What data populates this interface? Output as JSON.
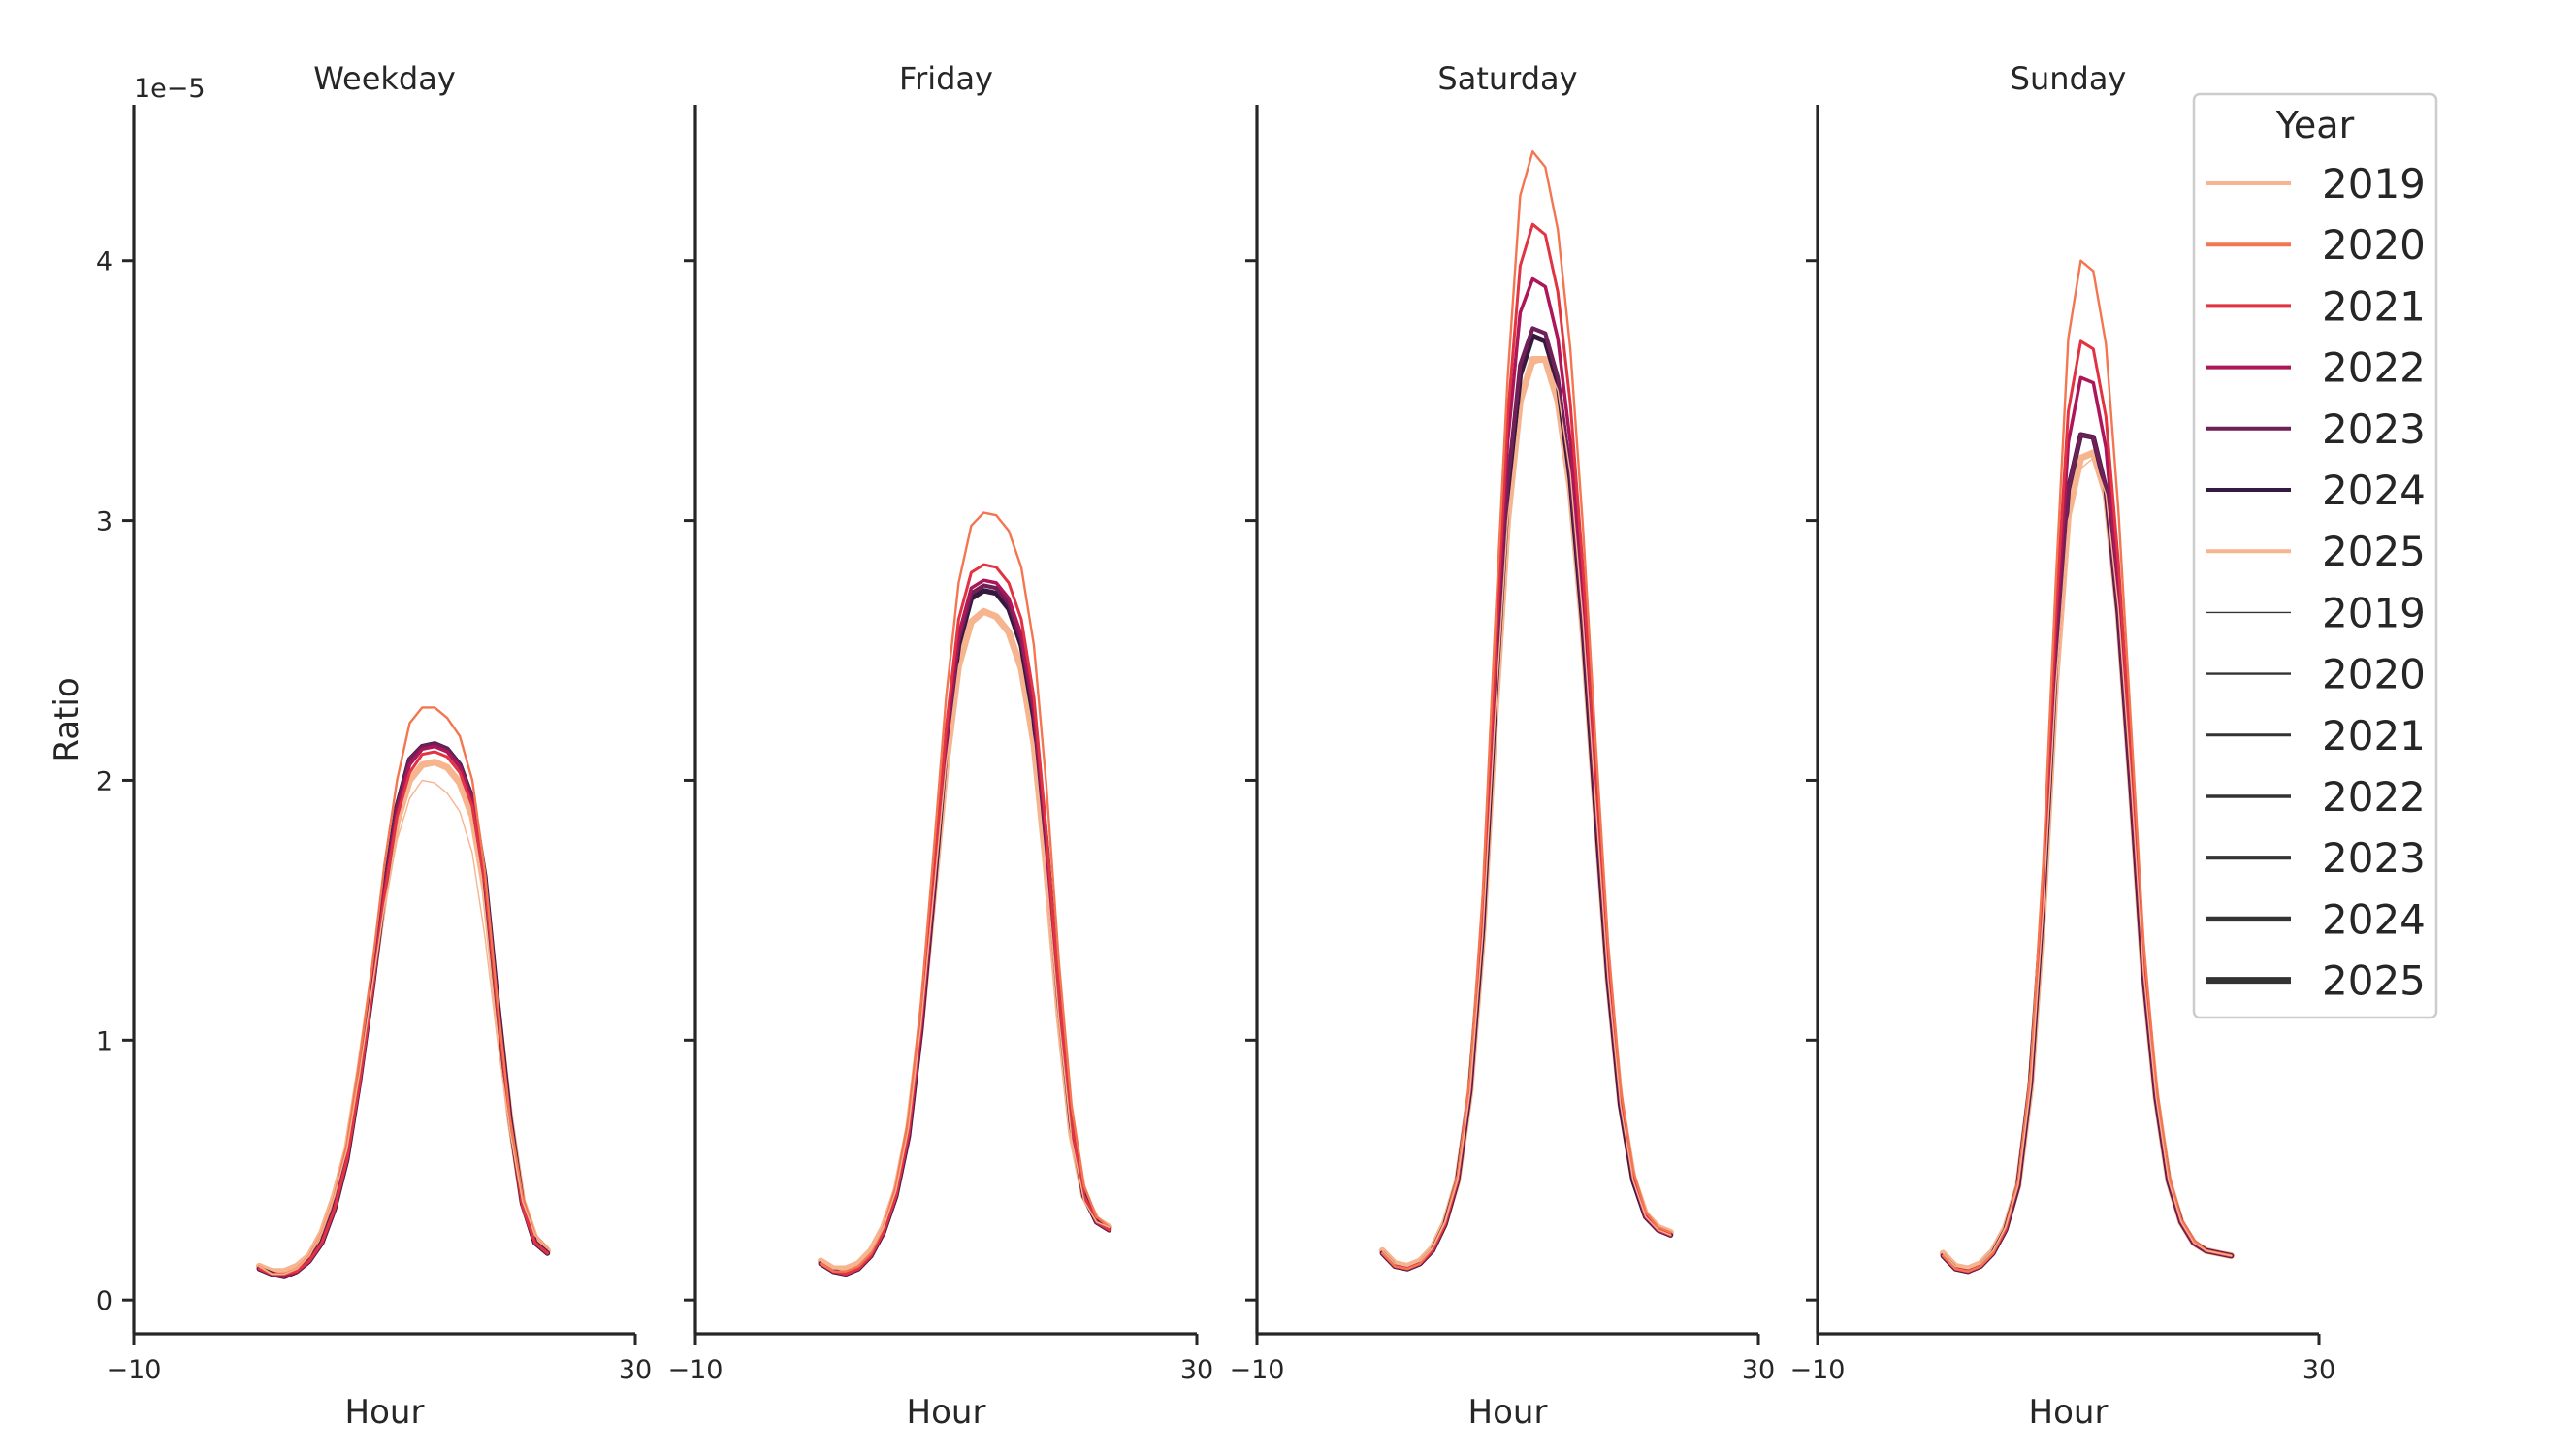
{
  "chart_data": {
    "type": "line",
    "panels": [
      "Weekday",
      "Friday",
      "Saturday",
      "Sunday"
    ],
    "xlabel": "Hour",
    "ylabel": "Ratio",
    "y_offset_label": "1e−5",
    "xlim": [
      -10,
      30
    ],
    "ylim": [
      -0.13,
      4.6
    ],
    "x_ticks": [
      -10,
      30
    ],
    "x_tick_labels": [
      "−10",
      "30"
    ],
    "y_ticks": [
      0,
      1,
      2,
      3,
      4
    ],
    "y_tick_labels": [
      "0",
      "1",
      "2",
      "3",
      "4"
    ],
    "y_unit_scale": 1e-05,
    "grid": false,
    "legend": {
      "title": "Year",
      "placement": "upper-right",
      "hue_entries": [
        {
          "label": "2019",
          "color": "#f6b48f"
        },
        {
          "label": "2020",
          "color": "#f37651"
        },
        {
          "label": "2021",
          "color": "#e13342"
        },
        {
          "label": "2022",
          "color": "#ad1759"
        },
        {
          "label": "2023",
          "color": "#701f57"
        },
        {
          "label": "2024",
          "color": "#35193e"
        },
        {
          "label": "2025",
          "color": "#f6b48f"
        }
      ],
      "size_entries": [
        {
          "label": "2019",
          "color": "#333333"
        },
        {
          "label": "2020",
          "color": "#333333"
        },
        {
          "label": "2021",
          "color": "#333333"
        },
        {
          "label": "2022",
          "color": "#333333"
        },
        {
          "label": "2023",
          "color": "#333333"
        },
        {
          "label": "2024",
          "color": "#333333"
        },
        {
          "label": "2025",
          "color": "#333333"
        }
      ]
    },
    "x": [
      0,
      1,
      2,
      3,
      4,
      5,
      6,
      7,
      8,
      9,
      10,
      11,
      12,
      13,
      14,
      15,
      16,
      17,
      18,
      19,
      20,
      21,
      22,
      23
    ],
    "series": [
      {
        "panel": "Weekday",
        "name": "2019",
        "color": "#f6b48f",
        "width": 1.4,
        "values": [
          0.13,
          0.1,
          0.1,
          0.12,
          0.17,
          0.26,
          0.4,
          0.58,
          0.87,
          1.2,
          1.52,
          1.77,
          1.93,
          2.0,
          1.99,
          1.95,
          1.88,
          1.72,
          1.4,
          1.0,
          0.65,
          0.38,
          0.25,
          0.2
        ]
      },
      {
        "panel": "Weekday",
        "name": "2020",
        "color": "#f37651",
        "width": 2.4,
        "values": [
          0.13,
          0.1,
          0.1,
          0.12,
          0.17,
          0.26,
          0.4,
          0.6,
          0.92,
          1.28,
          1.68,
          2.0,
          2.22,
          2.28,
          2.28,
          2.24,
          2.17,
          2.0,
          1.65,
          1.15,
          0.7,
          0.4,
          0.25,
          0.2
        ]
      },
      {
        "panel": "Weekday",
        "name": "2021",
        "color": "#e13342",
        "width": 3.0,
        "values": [
          0.12,
          0.1,
          0.1,
          0.11,
          0.15,
          0.22,
          0.35,
          0.54,
          0.83,
          1.18,
          1.56,
          1.86,
          2.03,
          2.1,
          2.11,
          2.09,
          2.03,
          1.9,
          1.6,
          1.12,
          0.68,
          0.36,
          0.22,
          0.18
        ]
      },
      {
        "panel": "Weekday",
        "name": "2022",
        "color": "#ad1759",
        "width": 3.5,
        "values": [
          0.12,
          0.1,
          0.09,
          0.11,
          0.15,
          0.22,
          0.35,
          0.54,
          0.83,
          1.18,
          1.57,
          1.88,
          2.06,
          2.12,
          2.13,
          2.11,
          2.05,
          1.92,
          1.62,
          1.14,
          0.69,
          0.36,
          0.22,
          0.18
        ]
      },
      {
        "panel": "Weekday",
        "name": "2023",
        "color": "#701f57",
        "width": 4.2,
        "values": [
          0.12,
          0.1,
          0.09,
          0.11,
          0.15,
          0.22,
          0.35,
          0.54,
          0.84,
          1.19,
          1.58,
          1.9,
          2.08,
          2.13,
          2.14,
          2.12,
          2.06,
          1.93,
          1.63,
          1.15,
          0.7,
          0.37,
          0.22,
          0.18
        ]
      },
      {
        "panel": "Weekday",
        "name": "2024",
        "color": "#35193e",
        "width": 5.4,
        "values": [
          0.12,
          0.1,
          0.09,
          0.11,
          0.15,
          0.22,
          0.35,
          0.54,
          0.84,
          1.19,
          1.58,
          1.9,
          2.08,
          2.13,
          2.14,
          2.12,
          2.06,
          1.93,
          1.63,
          1.15,
          0.7,
          0.37,
          0.22,
          0.18
        ]
      },
      {
        "panel": "Weekday",
        "name": "2025",
        "color": "#f6b48f",
        "width": 7.0,
        "values": [
          0.13,
          0.11,
          0.11,
          0.13,
          0.17,
          0.26,
          0.4,
          0.58,
          0.88,
          1.22,
          1.56,
          1.84,
          2.0,
          2.06,
          2.07,
          2.05,
          1.99,
          1.86,
          1.58,
          1.12,
          0.7,
          0.38,
          0.24,
          0.19
        ]
      },
      {
        "panel": "Friday",
        "name": "2019",
        "color": "#f6b48f",
        "width": 1.4,
        "values": [
          0.15,
          0.12,
          0.12,
          0.14,
          0.19,
          0.28,
          0.42,
          0.66,
          1.06,
          1.56,
          2.06,
          2.44,
          2.62,
          2.66,
          2.64,
          2.58,
          2.44,
          2.14,
          1.64,
          1.08,
          0.62,
          0.38,
          0.3,
          0.28
        ]
      },
      {
        "panel": "Friday",
        "name": "2020",
        "color": "#f37651",
        "width": 2.4,
        "values": [
          0.14,
          0.11,
          0.11,
          0.13,
          0.18,
          0.28,
          0.44,
          0.7,
          1.14,
          1.72,
          2.32,
          2.76,
          2.98,
          3.03,
          3.02,
          2.96,
          2.82,
          2.52,
          1.98,
          1.3,
          0.75,
          0.44,
          0.32,
          0.28
        ]
      },
      {
        "panel": "Friday",
        "name": "2021",
        "color": "#e13342",
        "width": 3.0,
        "values": [
          0.14,
          0.11,
          0.1,
          0.12,
          0.17,
          0.26,
          0.4,
          0.64,
          1.06,
          1.6,
          2.2,
          2.62,
          2.8,
          2.83,
          2.82,
          2.76,
          2.62,
          2.32,
          1.8,
          1.18,
          0.68,
          0.4,
          0.3,
          0.27
        ]
      },
      {
        "panel": "Friday",
        "name": "2022",
        "color": "#ad1759",
        "width": 3.5,
        "values": [
          0.14,
          0.11,
          0.1,
          0.12,
          0.17,
          0.26,
          0.4,
          0.63,
          1.04,
          1.58,
          2.16,
          2.56,
          2.74,
          2.77,
          2.76,
          2.7,
          2.56,
          2.28,
          1.77,
          1.16,
          0.67,
          0.4,
          0.3,
          0.27
        ]
      },
      {
        "panel": "Friday",
        "name": "2023",
        "color": "#701f57",
        "width": 4.2,
        "values": [
          0.14,
          0.11,
          0.1,
          0.12,
          0.17,
          0.26,
          0.4,
          0.63,
          1.04,
          1.57,
          2.14,
          2.54,
          2.72,
          2.75,
          2.74,
          2.68,
          2.54,
          2.26,
          1.76,
          1.16,
          0.67,
          0.4,
          0.3,
          0.27
        ]
      },
      {
        "panel": "Friday",
        "name": "2024",
        "color": "#35193e",
        "width": 5.4,
        "values": [
          0.14,
          0.11,
          0.1,
          0.12,
          0.17,
          0.26,
          0.4,
          0.63,
          1.04,
          1.57,
          2.13,
          2.52,
          2.7,
          2.73,
          2.72,
          2.66,
          2.52,
          2.24,
          1.75,
          1.15,
          0.67,
          0.4,
          0.3,
          0.27
        ]
      },
      {
        "panel": "Friday",
        "name": "2025",
        "color": "#f6b48f",
        "width": 7.0,
        "values": [
          0.15,
          0.12,
          0.12,
          0.14,
          0.19,
          0.28,
          0.42,
          0.66,
          1.06,
          1.56,
          2.06,
          2.44,
          2.61,
          2.65,
          2.63,
          2.57,
          2.43,
          2.14,
          1.66,
          1.1,
          0.64,
          0.4,
          0.31,
          0.28
        ]
      },
      {
        "panel": "Saturday",
        "name": "2019",
        "color": "#f6b48f",
        "width": 1.4,
        "values": [
          0.19,
          0.14,
          0.13,
          0.15,
          0.2,
          0.3,
          0.46,
          0.8,
          1.4,
          2.25,
          3.0,
          3.44,
          3.6,
          3.62,
          3.5,
          3.18,
          2.62,
          1.92,
          1.24,
          0.75,
          0.46,
          0.32,
          0.27,
          0.25
        ]
      },
      {
        "panel": "Saturday",
        "name": "2020",
        "color": "#f37651",
        "width": 2.4,
        "values": [
          0.18,
          0.13,
          0.12,
          0.14,
          0.2,
          0.3,
          0.48,
          0.86,
          1.56,
          2.6,
          3.55,
          4.25,
          4.42,
          4.36,
          4.12,
          3.66,
          2.98,
          2.16,
          1.38,
          0.82,
          0.5,
          0.34,
          0.28,
          0.26
        ]
      },
      {
        "panel": "Saturday",
        "name": "2021",
        "color": "#e13342",
        "width": 3.0,
        "values": [
          0.18,
          0.13,
          0.12,
          0.14,
          0.19,
          0.29,
          0.46,
          0.83,
          1.5,
          2.48,
          3.4,
          3.98,
          4.14,
          4.1,
          3.88,
          3.45,
          2.82,
          2.05,
          1.32,
          0.79,
          0.48,
          0.33,
          0.27,
          0.25
        ]
      },
      {
        "panel": "Saturday",
        "name": "2022",
        "color": "#ad1759",
        "width": 3.5,
        "values": [
          0.18,
          0.13,
          0.12,
          0.14,
          0.19,
          0.29,
          0.46,
          0.82,
          1.47,
          2.42,
          3.3,
          3.8,
          3.93,
          3.9,
          3.7,
          3.3,
          2.72,
          1.98,
          1.28,
          0.77,
          0.47,
          0.32,
          0.27,
          0.25
        ]
      },
      {
        "panel": "Saturday",
        "name": "2023",
        "color": "#701f57",
        "width": 4.2,
        "values": [
          0.18,
          0.13,
          0.12,
          0.14,
          0.19,
          0.29,
          0.46,
          0.81,
          1.44,
          2.34,
          3.14,
          3.6,
          3.74,
          3.72,
          3.55,
          3.18,
          2.62,
          1.92,
          1.25,
          0.76,
          0.47,
          0.32,
          0.27,
          0.25
        ]
      },
      {
        "panel": "Saturday",
        "name": "2024",
        "color": "#35193e",
        "width": 5.4,
        "values": [
          0.18,
          0.13,
          0.12,
          0.14,
          0.19,
          0.29,
          0.46,
          0.81,
          1.43,
          2.32,
          3.1,
          3.56,
          3.71,
          3.69,
          3.53,
          3.16,
          2.6,
          1.9,
          1.24,
          0.75,
          0.46,
          0.32,
          0.27,
          0.25
        ]
      },
      {
        "panel": "Saturday",
        "name": "2025",
        "color": "#f6b48f",
        "width": 7.0,
        "values": [
          0.19,
          0.14,
          0.13,
          0.15,
          0.2,
          0.3,
          0.46,
          0.8,
          1.4,
          2.25,
          3.0,
          3.46,
          3.62,
          3.62,
          3.46,
          3.12,
          2.58,
          1.9,
          1.24,
          0.76,
          0.47,
          0.33,
          0.28,
          0.26
        ]
      },
      {
        "panel": "Sunday",
        "name": "2019",
        "color": "#f6b48f",
        "width": 1.4,
        "values": [
          0.18,
          0.13,
          0.12,
          0.14,
          0.19,
          0.28,
          0.44,
          0.82,
          1.5,
          2.36,
          3.0,
          3.2,
          3.24,
          3.1,
          2.66,
          2.0,
          1.26,
          0.78,
          0.46,
          0.3,
          0.22,
          0.19,
          0.18,
          0.17
        ]
      },
      {
        "panel": "Sunday",
        "name": "2020",
        "color": "#f37651",
        "width": 2.4,
        "values": [
          0.17,
          0.12,
          0.11,
          0.13,
          0.18,
          0.28,
          0.46,
          0.88,
          1.68,
          2.76,
          3.7,
          4.0,
          3.96,
          3.68,
          3.04,
          2.22,
          1.38,
          0.84,
          0.49,
          0.31,
          0.23,
          0.19,
          0.18,
          0.17
        ]
      },
      {
        "panel": "Sunday",
        "name": "2021",
        "color": "#e13342",
        "width": 3.0,
        "values": [
          0.17,
          0.12,
          0.11,
          0.13,
          0.18,
          0.27,
          0.45,
          0.86,
          1.62,
          2.64,
          3.42,
          3.69,
          3.66,
          3.4,
          2.84,
          2.1,
          1.32,
          0.81,
          0.48,
          0.31,
          0.23,
          0.19,
          0.18,
          0.17
        ]
      },
      {
        "panel": "Sunday",
        "name": "2022",
        "color": "#ad1759",
        "width": 3.5,
        "values": [
          0.17,
          0.12,
          0.11,
          0.13,
          0.18,
          0.27,
          0.45,
          0.85,
          1.58,
          2.56,
          3.3,
          3.55,
          3.53,
          3.28,
          2.75,
          2.04,
          1.29,
          0.8,
          0.47,
          0.3,
          0.22,
          0.19,
          0.18,
          0.17
        ]
      },
      {
        "panel": "Sunday",
        "name": "2023",
        "color": "#701f57",
        "width": 4.2,
        "values": [
          0.17,
          0.12,
          0.11,
          0.13,
          0.18,
          0.27,
          0.44,
          0.84,
          1.55,
          2.46,
          3.12,
          3.33,
          3.32,
          3.12,
          2.64,
          1.98,
          1.26,
          0.78,
          0.46,
          0.3,
          0.22,
          0.19,
          0.18,
          0.17
        ]
      },
      {
        "panel": "Sunday",
        "name": "2024",
        "color": "#35193e",
        "width": 5.4,
        "values": [
          0.17,
          0.12,
          0.11,
          0.13,
          0.18,
          0.27,
          0.44,
          0.84,
          1.55,
          2.46,
          3.12,
          3.33,
          3.32,
          3.12,
          2.64,
          1.98,
          1.26,
          0.78,
          0.46,
          0.3,
          0.22,
          0.19,
          0.18,
          0.17
        ]
      },
      {
        "panel": "Sunday",
        "name": "2025",
        "color": "#f6b48f",
        "width": 7.0,
        "values": [
          0.18,
          0.13,
          0.12,
          0.14,
          0.19,
          0.28,
          0.44,
          0.82,
          1.5,
          2.38,
          3.02,
          3.24,
          3.26,
          3.1,
          2.64,
          1.98,
          1.26,
          0.78,
          0.46,
          0.3,
          0.22,
          0.19,
          0.18,
          0.17
        ]
      }
    ]
  }
}
